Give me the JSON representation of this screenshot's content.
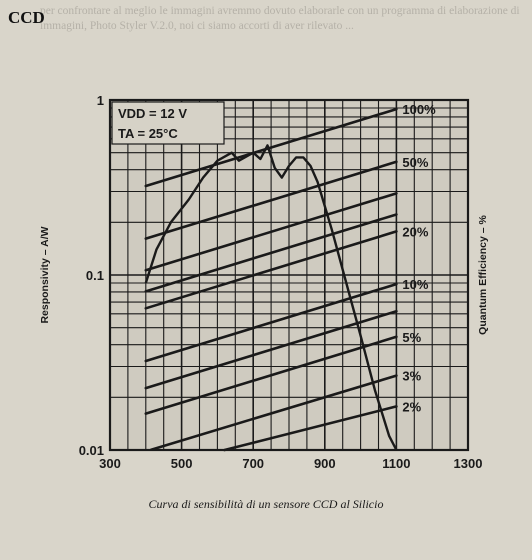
{
  "page": {
    "title": "CCD",
    "caption": "Curva di sensibilità di un sensore CCD al Silicio",
    "background_text": "per confrontare al meglio le immagini avremmo dovuto elaborarle con un programma di elaborazione di immagini, Photo Styler V.2.0, noi ci siamo accorti di aver rilevato ..."
  },
  "chart_data": {
    "type": "line",
    "title": "",
    "xlabel": "",
    "ylabel": "Responsivity – A/W",
    "y2label": "Quantum Efficiency – %",
    "x_ticks": [
      "300",
      "500",
      "700",
      "900",
      "1100",
      "1300"
    ],
    "y_ticks": [
      "1",
      "0.1",
      "0.01"
    ],
    "xlim": [
      300,
      1300
    ],
    "ylim": [
      0.01,
      1
    ],
    "yscale": "log",
    "grid": true,
    "annotations": [
      "VDD = 12 V",
      "TA = 25°C"
    ],
    "efficiency_lines": [
      {
        "label": "100%",
        "efficiency": 1.0
      },
      {
        "label": "50%",
        "efficiency": 0.5
      },
      {
        "efficiency": 0.33
      },
      {
        "efficiency": 0.25
      },
      {
        "label": "20%",
        "efficiency": 0.2
      },
      {
        "label": "10%",
        "efficiency": 0.1
      },
      {
        "efficiency": 0.07
      },
      {
        "label": "5%",
        "efficiency": 0.05
      },
      {
        "label": "3%",
        "efficiency": 0.03
      },
      {
        "label": "2%",
        "efficiency": 0.02
      }
    ],
    "series": [
      {
        "x": [
          400,
          430,
          470,
          520,
          560,
          600,
          640,
          660,
          700,
          720,
          740,
          760,
          780,
          800,
          820,
          840,
          860,
          880,
          920,
          960,
          1000,
          1040,
          1080,
          1100
        ],
        "y": [
          0.09,
          0.14,
          0.2,
          0.27,
          0.36,
          0.45,
          0.5,
          0.45,
          0.5,
          0.46,
          0.55,
          0.41,
          0.36,
          0.42,
          0.47,
          0.47,
          0.42,
          0.34,
          0.18,
          0.09,
          0.045,
          0.022,
          0.012,
          0.01
        ]
      }
    ]
  },
  "colors": {
    "background": "#d9d5ca",
    "ink": "#1a1a1a"
  }
}
